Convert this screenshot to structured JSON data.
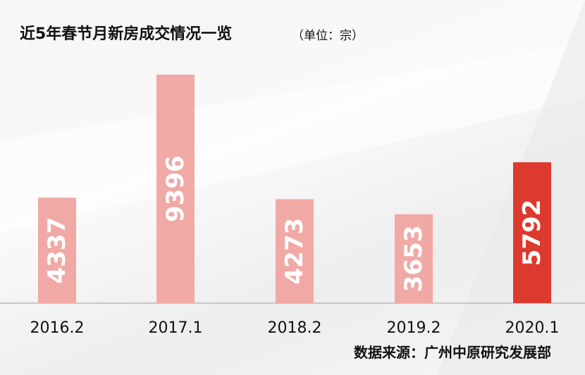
{
  "title": "近5年春节月新房成交情况一览",
  "unit_label": "（单位：宗）",
  "source": "数据来源：广州中原研究发展部",
  "colors": {
    "bar_normal": "#f1a9a6",
    "bar_highlight": "#dc3a2e",
    "axis": "#b9b9b9",
    "label": "#111111"
  },
  "chart_data": {
    "type": "bar",
    "categories": [
      "2016.2",
      "2017.1",
      "2018.2",
      "2019.2",
      "2020.1"
    ],
    "values": [
      4337,
      9396,
      4273,
      3653,
      5792
    ],
    "value_labels": [
      "4337",
      "9396",
      "4273",
      "3653",
      "5792"
    ],
    "highlight_index": 4,
    "ylim": [
      0,
      10000
    ],
    "title": "近5年春节月新房成交情况一览",
    "xlabel": "",
    "ylabel": "",
    "grid": false,
    "legend": "none",
    "value_label_orientation": "vertical"
  }
}
